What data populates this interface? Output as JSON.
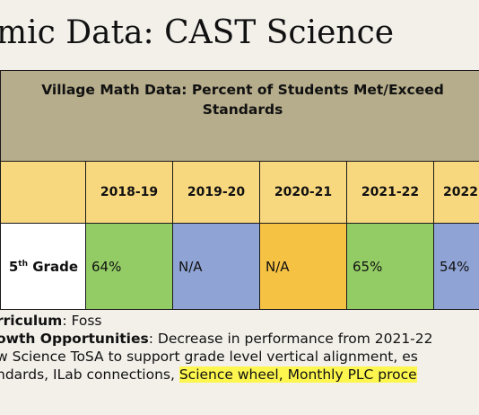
{
  "title": "mic Data: CAST Science",
  "table": {
    "header_line1": "Village Math Data:  Percent of Students Met/Exceed",
    "header_line2": "Standards",
    "years": [
      "2018-19",
      "2019-20",
      "2020-21",
      "2021-22",
      "2022"
    ],
    "grade_label": "5",
    "grade_suffix": "th",
    "grade_word": "Grade",
    "values": [
      "64%",
      "N/A",
      "N/A",
      "65%",
      "54%"
    ],
    "cell_colors": [
      "#93cc65",
      "#8fa3d4",
      "#f6c244",
      "#93cc65",
      "#8fa3d4"
    ]
  },
  "notes": {
    "curriculum_label": "rriculum",
    "curriculum_value": ":  Foss",
    "growth_label": "owth Opportunities",
    "growth_text": ": Decrease in performance from 2021-22",
    "line3": "w Science ToSA to support grade level vertical alignment, es",
    "line4_plain": "ndards, ILab connections, ",
    "line4_highlight": "Science wheel, Monthly PLC proce"
  }
}
